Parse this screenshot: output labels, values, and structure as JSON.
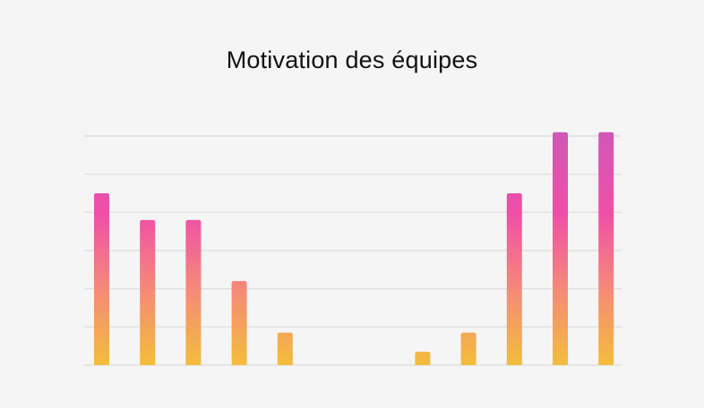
{
  "chart_data": {
    "type": "bar",
    "title": "Motivation des équipes",
    "xlabel": "",
    "ylabel": "",
    "categories": [
      "",
      "",
      "",
      "",
      "",
      "",
      "",
      "",
      "",
      "",
      "",
      ""
    ],
    "values": [
      4.5,
      3.8,
      3.8,
      2.2,
      0.85,
      0,
      0,
      0.35,
      0.85,
      4.5,
      6.1,
      6.1
    ],
    "ylim": [
      0,
      6
    ],
    "grid": true,
    "legend": "none",
    "colors": {
      "bar_top": "#cf58b6",
      "bar_mid": "#f04fa8",
      "bar_low": "#f58a78",
      "bar_bottom": "#f3bd3b",
      "grid": "#dcdcdc",
      "background": "#f5f5f5"
    }
  }
}
